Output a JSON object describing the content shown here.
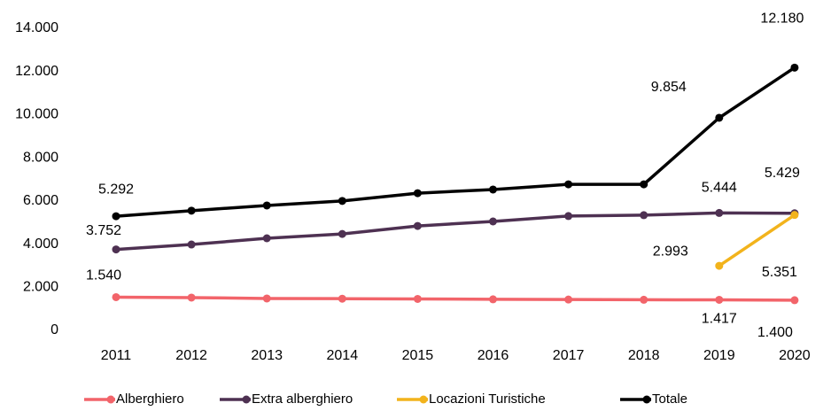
{
  "chart_data": {
    "type": "line",
    "categories": [
      "2011",
      "2012",
      "2013",
      "2014",
      "2015",
      "2016",
      "2017",
      "2018",
      "2019",
      "2020"
    ],
    "series": [
      {
        "name": "Alberghiero",
        "color": "#f2646a",
        "values": [
          1540,
          1520,
          1480,
          1470,
          1460,
          1440,
          1430,
          1420,
          1417,
          1400
        ],
        "value_labels": [
          "1.540",
          null,
          null,
          null,
          null,
          null,
          null,
          null,
          "1.417",
          "1.400"
        ]
      },
      {
        "name": "Extra alberghiero",
        "color": "#4e3152",
        "values": [
          3752,
          3980,
          4270,
          4470,
          4840,
          5050,
          5300,
          5340,
          5444,
          5429
        ],
        "value_labels": [
          "3.752",
          null,
          null,
          null,
          null,
          null,
          null,
          null,
          "5.444",
          "5.429"
        ]
      },
      {
        "name": "Locazioni Turistiche",
        "color": "#f2b31c",
        "values": [
          null,
          null,
          null,
          null,
          null,
          null,
          null,
          null,
          2993,
          5351
        ],
        "value_labels": [
          null,
          null,
          null,
          null,
          null,
          null,
          null,
          null,
          "2.993",
          "5.351"
        ]
      },
      {
        "name": "Totale",
        "color": "#000000",
        "values": [
          5292,
          5550,
          5790,
          6000,
          6360,
          6530,
          6770,
          6770,
          9854,
          12180
        ],
        "value_labels": [
          "5.292",
          null,
          null,
          null,
          null,
          null,
          null,
          null,
          "9.854",
          "12.180"
        ]
      }
    ],
    "ylim": [
      0,
      14000
    ],
    "yticks": [
      0,
      {
        "value": 2000,
        "label": "2.000"
      },
      {
        "value": 4000,
        "label": "4.000"
      },
      {
        "value": 6000,
        "label": "6.000"
      },
      {
        "value": 8000,
        "label": "8.000"
      },
      {
        "value": 10000,
        "label": "10.000"
      },
      {
        "value": 12000,
        "label": "12.000"
      },
      {
        "value": 14000,
        "label": "14.000"
      }
    ],
    "grid": false,
    "legend": "bottom"
  }
}
